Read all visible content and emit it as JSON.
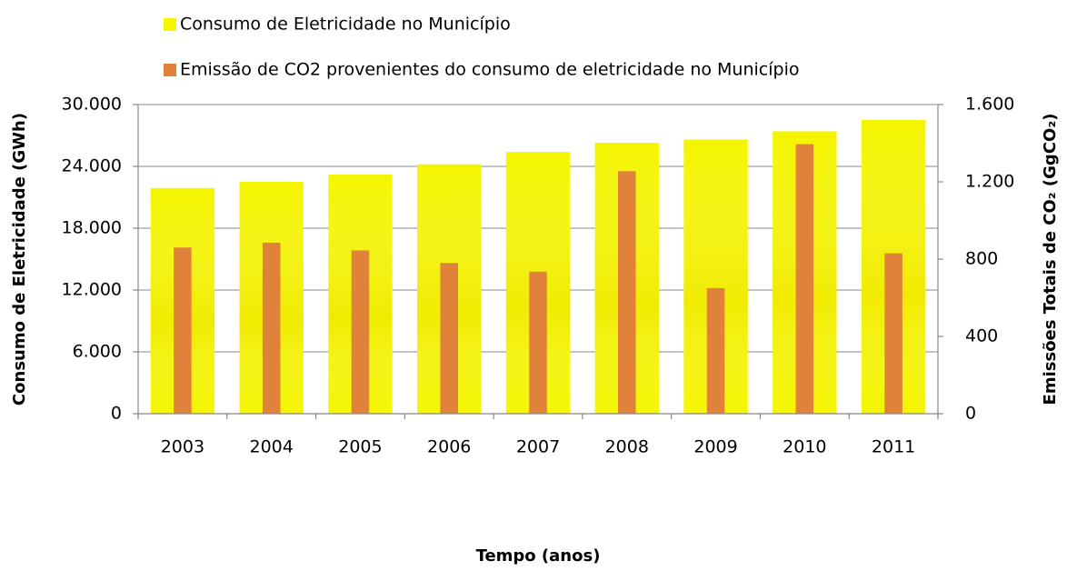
{
  "chart_data": {
    "type": "bar",
    "categories": [
      "2003",
      "2004",
      "2005",
      "2006",
      "2007",
      "2008",
      "2009",
      "2010",
      "2011"
    ],
    "series": [
      {
        "name": "Consumo de Eletricidade no Município",
        "color": "#f5f500",
        "values": [
          21900,
          22500,
          23200,
          24200,
          25400,
          26300,
          26600,
          27400,
          28500
        ]
      },
      {
        "name": "Emissão de CO2 provenientes do consumo de eletricidade no Município",
        "color": "#e0823a",
        "axis": "y2",
        "values": [
          860,
          885,
          845,
          780,
          735,
          1255,
          650,
          1395,
          830
        ]
      }
    ],
    "x_label": "Tempo (anos)",
    "y_label": "Consumo de Eletricidade (GWh)",
    "y2_label": "Emissões Totais de CO₂ (GgCO₂)",
    "ylim": [
      0,
      30000
    ],
    "yticks": [
      0,
      {
        "value": 6000,
        "label": "6.000"
      },
      {
        "value": 12000,
        "label": "12.000"
      },
      {
        "value": 18000,
        "label": "18.000"
      },
      {
        "value": 24000,
        "label": "24.000"
      },
      {
        "value": 30000,
        "label": "30.000"
      }
    ],
    "y2lim": [
      0,
      1600
    ],
    "y2ticks": [
      0,
      400,
      800,
      {
        "value": 1200,
        "label": "1.200"
      },
      {
        "value": 1600,
        "label": "1.600"
      }
    ],
    "grid": true,
    "legend": "top"
  }
}
